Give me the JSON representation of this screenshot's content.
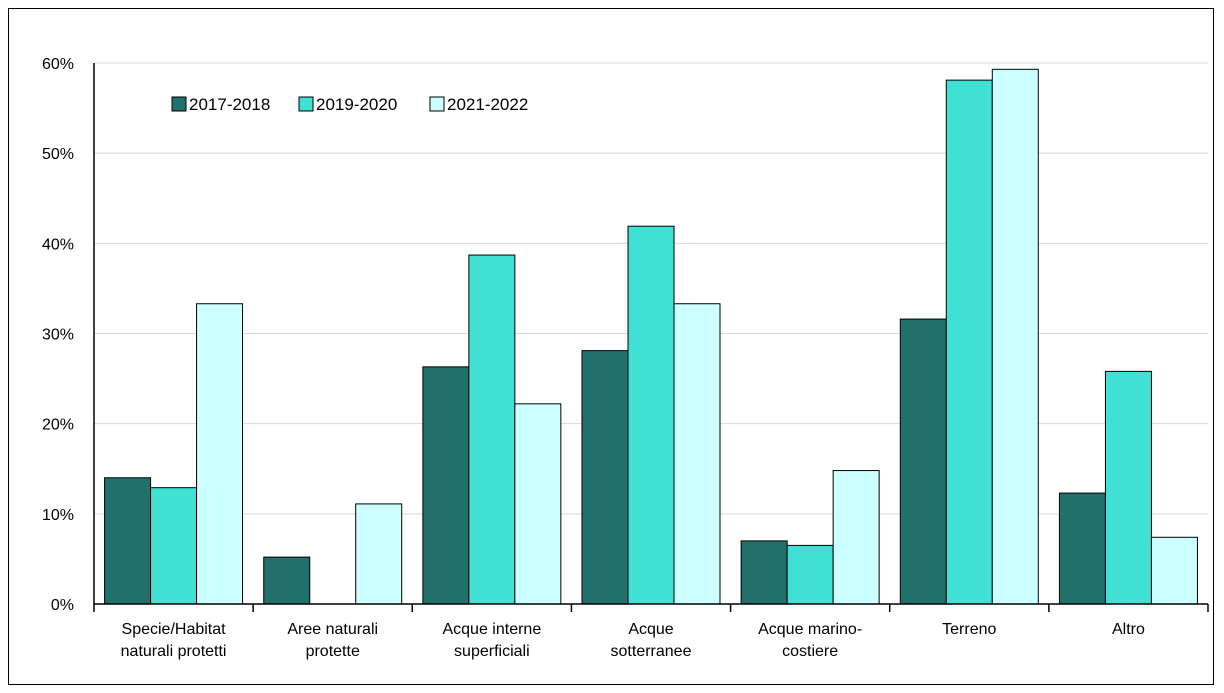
{
  "chart_data": {
    "type": "bar",
    "categories": [
      [
        "Specie/Habitat",
        "naturali protetti"
      ],
      [
        "Aree naturali",
        "protette"
      ],
      [
        "Acque interne",
        "superficiali"
      ],
      [
        "Acque",
        "sotterranee"
      ],
      [
        "Acque marino-",
        "costiere"
      ],
      [
        "Terreno"
      ],
      [
        "Altro"
      ]
    ],
    "series": [
      {
        "name": "2017-2018",
        "color": "#21706B",
        "values": [
          14.0,
          5.2,
          26.3,
          28.1,
          7.0,
          31.6,
          12.3
        ]
      },
      {
        "name": "2019-2020",
        "color": "#40E0D5",
        "values": [
          12.9,
          0,
          38.7,
          41.9,
          6.5,
          58.1,
          25.8
        ]
      },
      {
        "name": "2021-2022",
        "color": "#CCFFFF",
        "values": [
          33.3,
          11.1,
          22.2,
          33.3,
          14.8,
          59.3,
          7.4
        ]
      }
    ],
    "ylim": [
      0,
      60
    ],
    "yticks": [
      0,
      10,
      20,
      30,
      40,
      50,
      60
    ],
    "ytick_labels": [
      "0%",
      "10%",
      "20%",
      "30%",
      "40%",
      "50%",
      "60%"
    ],
    "grid": true,
    "legend_position": "top-left",
    "title": "",
    "xlabel": "",
    "ylabel": ""
  }
}
